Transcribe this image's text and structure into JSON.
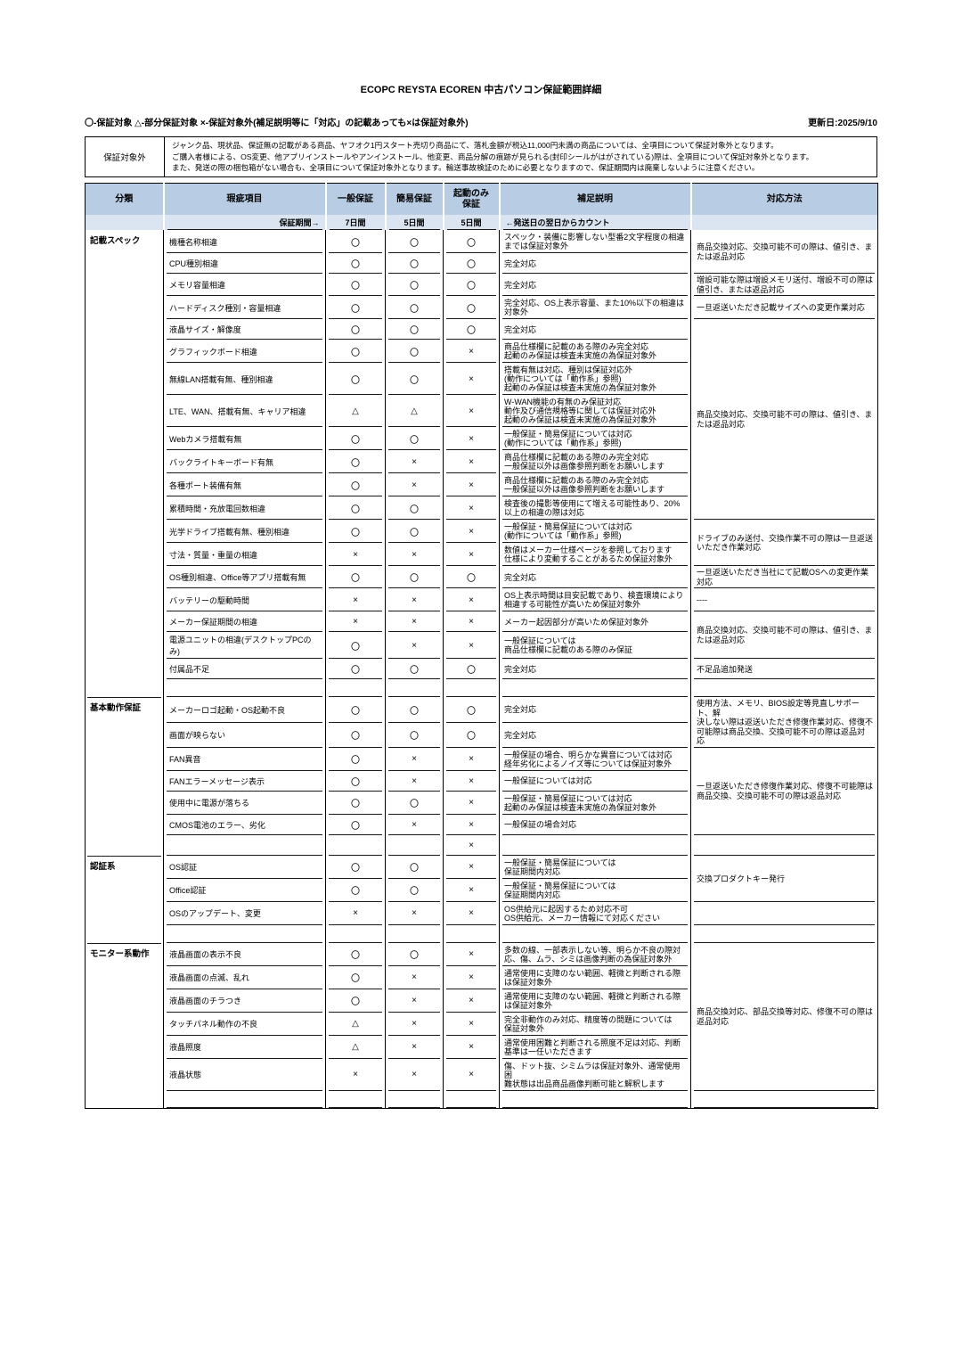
{
  "page": {
    "title": "ECOPC REYSTA ECOREN 中古パソコン保証範囲詳細",
    "legend": "〇-保証対象  △-部分保証対象  ×-保証対象外(補足説明等に「対応」の記載あっても×は保証対象外)",
    "updated": "更新日:2025/9/10"
  },
  "exclusion": {
    "label": "保証対象外",
    "text": "ジャンク品、現状品、保証無の記載がある商品、ヤフオク1円スタート売切り商品にて、落札金額が税込11,000円未満の商品については、全項目について保証対象外となります。\nご購入者様による、OS変更、他アプリインストールやアンインストール、他変更、商品分解の痕跡が見られる(封印シールがはがされている)際は、全項目について保証対象外となります。\nまた、発送の際の梱包箱がない場合も、全項目について保証対象外となります。輸送事故検証のために必要となりますので、保証期間内は廃棄しないように注意ください。"
  },
  "table": {
    "colors": {
      "header_bg": "#b8cce4",
      "subheader_bg": "#dbe5f1",
      "line": "#1a1a1a"
    },
    "headers": {
      "category": "分類",
      "item": "瑕疵項目",
      "general": "一般保証",
      "simple": "簡易保証",
      "boot": "起動のみ\n保証",
      "supplement": "補足説明",
      "response": "対応方法"
    },
    "subheader": {
      "item": "保証期間→",
      "general": "7日間",
      "simple": "5日間",
      "boot": "5日間",
      "note": "←発送日の翌日からカウント"
    },
    "sections": [
      {
        "category": "記載スペック",
        "rows": [
          {
            "item": "機種名称相違",
            "general": "〇",
            "simple": "〇",
            "boot": "〇",
            "supplement": "スペック・装備に影響しない型番2文字程度の相違\nまでは保証対象外"
          },
          {
            "item": "CPU種別相違",
            "general": "〇",
            "simple": "〇",
            "boot": "〇",
            "supplement": "完全対応"
          },
          {
            "item": "メモリ容量相違",
            "general": "〇",
            "simple": "〇",
            "boot": "〇",
            "supplement": "完全対応"
          },
          {
            "item": "ハードディスク種別・容量相違",
            "general": "〇",
            "simple": "〇",
            "boot": "〇",
            "supplement": "完全対応、OS上表示容量、また10%以下の相違は\n対象外"
          },
          {
            "item": "液晶サイズ・解像度",
            "general": "〇",
            "simple": "〇",
            "boot": "〇",
            "supplement": "完全対応"
          },
          {
            "item": "グラフィックボード相違",
            "general": "〇",
            "simple": "〇",
            "boot": "×",
            "supplement": "商品仕様欄に記載のある際のみ完全対応\n起動のみ保証は検査未実施の為保証対象外"
          },
          {
            "item": "無線LAN搭載有無、種別相違",
            "general": "〇",
            "simple": "〇",
            "boot": "×",
            "supplement": "搭載有無は対応、種別は保証対応外\n(動作については「動作系」参照)\n起動のみ保証は検査未実施の為保証対象外"
          },
          {
            "item": "LTE、WAN、搭載有無、キャリア相違",
            "general": "△",
            "simple": "△",
            "boot": "×",
            "supplement": "W-WAN機能の有無のみ保証対応\n動作及び通信規格等に関しては保証対応外\n起動のみ保証は検査未実施の為保証対象外"
          },
          {
            "item": "Webカメラ搭載有無",
            "general": "〇",
            "simple": "〇",
            "boot": "×",
            "supplement": "一般保証・簡易保証については対応\n(動作については「動作系」参照)"
          },
          {
            "item": "バックライトキーボード有無",
            "general": "〇",
            "simple": "×",
            "boot": "×",
            "supplement": "商品仕様欄に記載のある際のみ完全対応\n一般保証以外は画像参照判断をお願いします"
          },
          {
            "item": "各種ポート装備有無",
            "general": "〇",
            "simple": "×",
            "boot": "×",
            "supplement": "商品仕様欄に記載のある際のみ完全対応\n一般保証以外は画像参照判断をお願いします"
          },
          {
            "item": "累積時間・充放電回数相違",
            "general": "〇",
            "simple": "〇",
            "boot": "×",
            "supplement": "検査後の撮影等使用にて増える可能性あり、20%\n以上の相違の際は対応"
          },
          {
            "item": "光学ドライブ搭載有無、種別相違",
            "general": "〇",
            "simple": "〇",
            "boot": "×",
            "supplement": "一般保証・簡易保証については対応\n(動作については「動作系」参照)"
          },
          {
            "item": "寸法・質量・重量の相違",
            "general": "×",
            "simple": "×",
            "boot": "×",
            "supplement": "数値はメーカー仕様ページを参照しております\n仕様により変動することがあるため保証対象外"
          },
          {
            "item": "OS種別相違、Office等アプリ搭載有無",
            "general": "〇",
            "simple": "〇",
            "boot": "〇",
            "supplement": "完全対応"
          },
          {
            "item": "バッテリーの駆動時間",
            "general": "×",
            "simple": "×",
            "boot": "×",
            "supplement": "OS上表示時間は目安記載であり、検査環境により\n相違する可能性が高いため保証対象外"
          },
          {
            "item": "メーカー保証期間の相違",
            "general": "×",
            "simple": "×",
            "boot": "×",
            "supplement": "メーカー起因部分が高いため保証対象外"
          },
          {
            "item": "電源ユニットの相違(デスクトップPCのみ)",
            "general": "〇",
            "simple": "×",
            "boot": "×",
            "supplement": "一般保証については\n商品仕様欄に記載のある際のみ保証"
          },
          {
            "item": "付属品不足",
            "general": "〇",
            "simple": "〇",
            "boot": "〇",
            "supplement": "完全対応"
          },
          {
            "spacer": true,
            "item": "",
            "general": "",
            "simple": "",
            "boot": "",
            "supplement": ""
          }
        ],
        "responses": [
          {
            "span": 2,
            "text": "商品交換対応、交換可能不可の際は、値引き、ま\nたは返品対応"
          },
          {
            "span": 1,
            "text": "増設可能な際は増設メモリ送付、増設不可の際は\n値引き、または返品対応"
          },
          {
            "span": 1,
            "text": "一旦返送いただき記載サイズへの変更作業対応"
          },
          {
            "span": 8,
            "text": "商品交換対応、交換可能不可の際は、値引き、ま\nたは返品対応"
          },
          {
            "span": 2,
            "text": "ドライブのみ送付、交換作業不可の際は一旦返送\nいただき作業対応"
          },
          {
            "span": 1,
            "text": "一旦返送いただき当社にて記載OSへの変更作業\n対応"
          },
          {
            "span": 1,
            "text": "----"
          },
          {
            "span": 2,
            "text": "商品交換対応、交換可能不可の際は、値引き、ま\nたは返品対応"
          },
          {
            "span": 1,
            "text": "不足品追加発送"
          },
          {
            "span": 1,
            "text": ""
          }
        ]
      },
      {
        "category": "基本動作保証",
        "rows": [
          {
            "item": "メーカーロゴ起動・OS起動不良",
            "general": "〇",
            "simple": "〇",
            "boot": "〇",
            "supplement": "完全対応"
          },
          {
            "item": "画面が映らない",
            "general": "〇",
            "simple": "〇",
            "boot": "〇",
            "supplement": "完全対応"
          },
          {
            "item": "FAN異音",
            "general": "〇",
            "simple": "×",
            "boot": "×",
            "supplement": "一般保証の場合、明らかな異音については対応\n経年劣化によるノイズ等については保証対象外"
          },
          {
            "item": "FANエラーメッセージ表示",
            "general": "〇",
            "simple": "×",
            "boot": "×",
            "supplement": "一般保証については対応"
          },
          {
            "item": "使用中に電源が落ちる",
            "general": "〇",
            "simple": "〇",
            "boot": "×",
            "supplement": "一般保証・簡易保証については対応\n起動のみ保証は検査未実施の為保証対象外"
          },
          {
            "item": "CMOS電池のエラー、劣化",
            "general": "〇",
            "simple": "×",
            "boot": "×",
            "supplement": "一般保証の場合対応"
          },
          {
            "item": "",
            "general": "",
            "simple": "",
            "boot": "×",
            "supplement": ""
          }
        ],
        "responses": [
          {
            "span": 2,
            "text": "使用方法、メモリ、BIOS設定等見直しサポート、解\n決しない際は返送いただき修復作業対応、修復不\n可能際は商品交換、交換可能不可の際は返品対\n応"
          },
          {
            "span": 4,
            "text": "一旦返送いただき修復作業対応、修復不可能際は\n商品交換、交換可能不可の際は返品対応"
          },
          {
            "span": 1,
            "text": ""
          }
        ]
      },
      {
        "category": "認証系",
        "rows": [
          {
            "item": "OS認証",
            "general": "〇",
            "simple": "〇",
            "boot": "×",
            "supplement": "一般保証・簡易保証については\n保証期間内対応"
          },
          {
            "item": "Office認証",
            "general": "〇",
            "simple": "〇",
            "boot": "×",
            "supplement": "一般保証・簡易保証については\n保証期間内対応"
          },
          {
            "item": "OSのアップデート、変更",
            "general": "×",
            "simple": "×",
            "boot": "×",
            "supplement": "OS供給元に起因するため対応不可\nOS供給元、メーカー情報にて対応ください"
          },
          {
            "spacer": true,
            "item": "",
            "general": "",
            "simple": "",
            "boot": "",
            "supplement": ""
          }
        ],
        "responses": [
          {
            "span": 2,
            "text": "交換プロダクトキー発行"
          },
          {
            "span": 1,
            "text": ""
          },
          {
            "span": 1,
            "text": ""
          }
        ]
      },
      {
        "category": "モニター系動作",
        "rows": [
          {
            "item": "液晶画面の表示不良",
            "general": "〇",
            "simple": "〇",
            "boot": "×",
            "supplement": "多数の線、一部表示しない等、明らか不良の際対\n応、傷、ムラ、シミは画像判断の為保証対象外"
          },
          {
            "item": "液晶画面の点滅、乱れ",
            "general": "〇",
            "simple": "×",
            "boot": "×",
            "supplement": "通常使用に支障のない範囲、軽微と判断される際\nは保証対象外"
          },
          {
            "item": "液晶画面のチラつき",
            "general": "〇",
            "simple": "×",
            "boot": "×",
            "supplement": "通常使用に支障のない範囲、軽微と判断される際\nは保証対象外"
          },
          {
            "item": "タッチパネル動作の不良",
            "general": "△",
            "simple": "×",
            "boot": "×",
            "supplement": "完全非動作のみ対応、精度等の問題については\n保証対象外"
          },
          {
            "item": "液晶照度",
            "general": "△",
            "simple": "×",
            "boot": "×",
            "supplement": "通常使用困難と判断される照度不足は対応、判断\n基準は一任いただきます"
          },
          {
            "item": "液晶状態",
            "general": "×",
            "simple": "×",
            "boot": "×",
            "supplement": "傷、ドット抜、シミムラは保証対象外、通常使用困\n難状態は出品商品画像判断可能と解釈します"
          },
          {
            "spacer": true,
            "item": "",
            "general": "",
            "simple": "",
            "boot": "",
            "supplement": ""
          }
        ],
        "responses": [
          {
            "span": 6,
            "text": "商品交換対応、部品交換等対応、修復不可の際は\n返品対応"
          },
          {
            "span": 1,
            "text": ""
          }
        ]
      }
    ]
  }
}
